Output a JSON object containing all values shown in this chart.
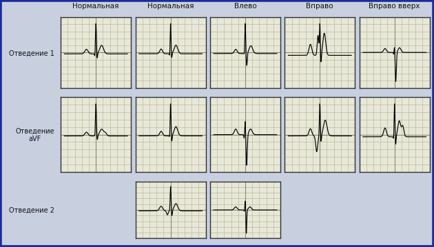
{
  "title_labels": [
    "Нормальная",
    "Нормальная",
    "Влево",
    "Вправо",
    "Вправо вверх"
  ],
  "row_label_0": "Отведение 1",
  "row_label_1": "Отведение\naVF",
  "row_label_2": "Отведение 2",
  "bg_color": "#c8d0e0",
  "panel_bg": "#e8e8d8",
  "grid_minor": "#b0b090",
  "grid_major": "#888870",
  "ecg_color": "#000000",
  "border_outer": "#1a2a9a",
  "border_panel": "#444444",
  "fig_w": 6.3,
  "fig_h": 3.59,
  "signal_map": {
    "0,0": "norm1_l1",
    "0,1": "norm2_l1",
    "0,2": "left_l1",
    "0,3": "right_l1",
    "0,4": "rightup_l1",
    "1,0": "norm1_avf",
    "1,1": "norm2_avf",
    "1,2": "left_avf",
    "1,3": "right_avf",
    "1,4": "rightup_avf",
    "2,1": "norm2_l2",
    "2,2": "left_l2"
  }
}
